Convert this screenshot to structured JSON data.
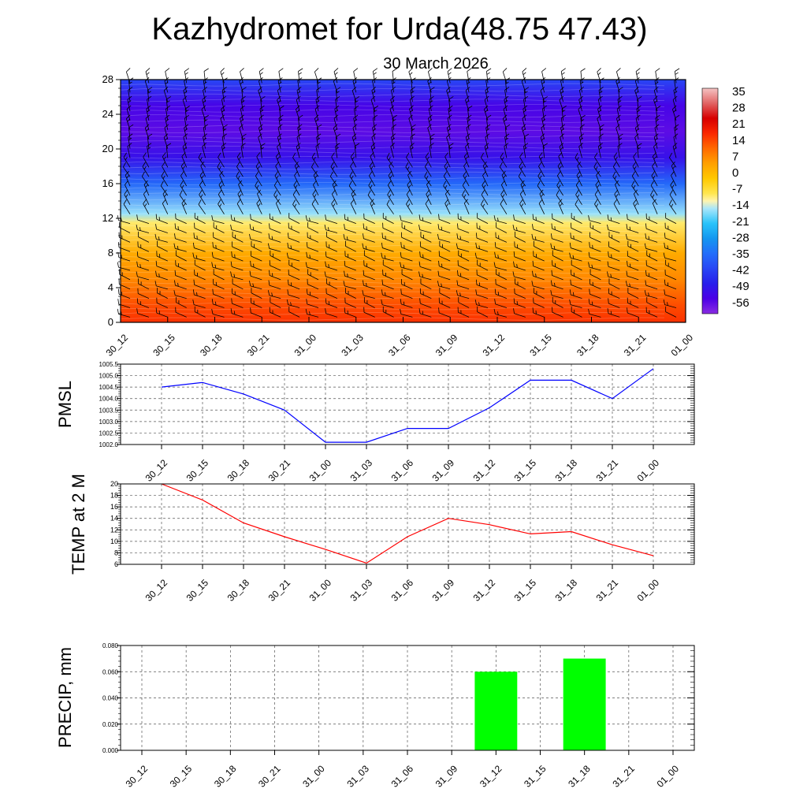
{
  "header": {
    "title": "Kazhydromet for Urda(48.75 47.43)",
    "date": "30 March 2026"
  },
  "time_labels": [
    "30_12",
    "30_15",
    "30_18",
    "30_21",
    "31_00",
    "31_03",
    "31_06",
    "31_09",
    "31_12",
    "31_15",
    "31_18",
    "31_21",
    "01_00"
  ],
  "chart_data": [
    {
      "type": "heatmap",
      "name": "vertical-section",
      "ylim": [
        0,
        28
      ],
      "yticks": [
        "0",
        "4",
        "8",
        "12",
        "16",
        "20",
        "24",
        "28"
      ],
      "colorbar": {
        "labels": [
          "35",
          "28",
          "21",
          "14",
          "7",
          "0",
          "-7",
          "-14",
          "-21",
          "-28",
          "-35",
          "-42",
          "-49",
          "-56"
        ],
        "range": [
          -63,
          42
        ]
      },
      "bands": [
        {
          "level": 0,
          "value": 20
        },
        {
          "level": 2,
          "value": 17
        },
        {
          "level": 5,
          "value": 10
        },
        {
          "level": 8,
          "value": 5
        },
        {
          "level": 11.5,
          "value": -8
        },
        {
          "level": 12.5,
          "value": -15
        },
        {
          "level": 16,
          "value": -36
        },
        {
          "level": 19,
          "value": -52
        },
        {
          "level": 22,
          "value": -58
        },
        {
          "level": 25,
          "value": -55
        },
        {
          "level": 28,
          "value": -42
        }
      ]
    },
    {
      "type": "line",
      "name": "pmsl",
      "ylabel": "PMSL",
      "ylim": [
        1002.0,
        1005.5
      ],
      "yticks": [
        "1002.0",
        "1002.5",
        "1003.0",
        "1003.5",
        "1004.0",
        "1004.5",
        "1005.0",
        "1005.5"
      ],
      "color": "#0000ff",
      "values": [
        1004.5,
        1004.7,
        1004.2,
        1003.5,
        1002.1,
        1002.1,
        1002.7,
        1002.7,
        1003.6,
        1004.8,
        1004.8,
        1004.0,
        1005.3
      ]
    },
    {
      "type": "line",
      "name": "temp",
      "ylabel": "TEMP at 2 M",
      "ylim": [
        6,
        20
      ],
      "yticks": [
        "6",
        "8",
        "10",
        "12",
        "14",
        "16",
        "18",
        "20"
      ],
      "color": "#ff0000",
      "values": [
        20.0,
        17.2,
        13.2,
        10.8,
        8.6,
        6.2,
        10.8,
        14.0,
        12.9,
        11.3,
        11.7,
        9.4,
        7.5
      ]
    },
    {
      "type": "bar",
      "name": "precip",
      "ylabel": "PRECIP, mm",
      "ylim": [
        0,
        0.08
      ],
      "yticks": [
        "0.000",
        "0.020",
        "0.040",
        "0.060",
        "0.080"
      ],
      "color": "#00ff00",
      "values": [
        0,
        0,
        0,
        0,
        0,
        0,
        0,
        0,
        0.06,
        0,
        0.07,
        0,
        0
      ]
    }
  ]
}
